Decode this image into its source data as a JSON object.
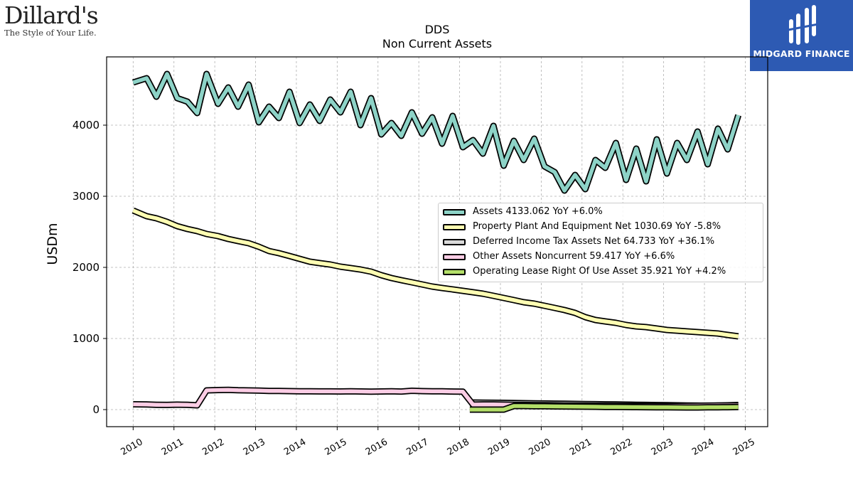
{
  "brand": {
    "name": "Dillard's",
    "tagline": "The Style of Your Life."
  },
  "badge": {
    "name": "MIDGARD FINANCE",
    "bg_color": "#2d5ab3"
  },
  "chart_data": {
    "type": "line",
    "title": "DDS",
    "subtitle": "Non Current  Assets",
    "ylabel": "USDm",
    "xlabel": "",
    "xlim": [
      2009.35,
      2025.55
    ],
    "ylim": [
      -240,
      4960
    ],
    "yticks": [
      0,
      1000,
      2000,
      3000,
      4000
    ],
    "xticks": [
      2010,
      2011,
      2012,
      2013,
      2014,
      2015,
      2016,
      2017,
      2018,
      2019,
      2020,
      2021,
      2022,
      2023,
      2024,
      2025
    ],
    "grid": true,
    "legend_position": "center-right",
    "series": [
      {
        "name": "Assets",
        "legend": "Assets  4133.062 YoY +6.0%",
        "color": "#8dd3c7",
        "x": [
          2010.0,
          2010.33,
          2010.57,
          2010.83,
          2011.08,
          2011.33,
          2011.57,
          2011.8,
          2012.08,
          2012.33,
          2012.57,
          2012.83,
          2013.08,
          2013.33,
          2013.57,
          2013.83,
          2014.08,
          2014.33,
          2014.57,
          2014.83,
          2015.08,
          2015.33,
          2015.57,
          2015.83,
          2016.08,
          2016.33,
          2016.57,
          2016.83,
          2017.08,
          2017.33,
          2017.57,
          2017.83,
          2018.08,
          2018.33,
          2018.57,
          2018.83,
          2019.08,
          2019.33,
          2019.57,
          2019.83,
          2020.08,
          2020.33,
          2020.57,
          2020.83,
          2021.08,
          2021.33,
          2021.57,
          2021.83,
          2022.08,
          2022.33,
          2022.57,
          2022.83,
          2023.08,
          2023.33,
          2023.57,
          2023.83,
          2024.08,
          2024.33,
          2024.57,
          2024.83
        ],
        "y": [
          4600,
          4660,
          4400,
          4720,
          4380,
          4330,
          4170,
          4720,
          4300,
          4530,
          4260,
          4570,
          4040,
          4260,
          4100,
          4470,
          4030,
          4290,
          4060,
          4360,
          4180,
          4470,
          4000,
          4380,
          3870,
          4030,
          3850,
          4180,
          3880,
          4110,
          3740,
          4130,
          3690,
          3790,
          3600,
          3990,
          3430,
          3780,
          3510,
          3810,
          3420,
          3340,
          3080,
          3300,
          3100,
          3510,
          3400,
          3750,
          3230,
          3670,
          3210,
          3800,
          3320,
          3750,
          3510,
          3910,
          3450,
          3950,
          3660,
          4140
        ]
      },
      {
        "name": "Property Plant And Equipment Net",
        "legend": "Property Plant And Equipment Net  1030.69 YoY -5.8%",
        "color": "#ffffb3",
        "x": [
          2010.0,
          2010.33,
          2010.57,
          2010.83,
          2011.08,
          2011.33,
          2011.57,
          2011.8,
          2012.08,
          2012.33,
          2012.57,
          2012.83,
          2013.08,
          2013.33,
          2013.57,
          2013.83,
          2014.08,
          2014.33,
          2014.57,
          2014.83,
          2015.08,
          2015.33,
          2015.57,
          2015.83,
          2016.08,
          2016.33,
          2016.57,
          2016.83,
          2017.08,
          2017.33,
          2017.57,
          2017.83,
          2018.08,
          2018.33,
          2018.57,
          2018.83,
          2019.08,
          2019.33,
          2019.57,
          2019.83,
          2020.08,
          2020.33,
          2020.57,
          2020.83,
          2021.08,
          2021.33,
          2021.57,
          2021.83,
          2022.08,
          2022.33,
          2022.57,
          2022.83,
          2023.08,
          2023.33,
          2023.57,
          2023.83,
          2024.08,
          2024.33,
          2024.57,
          2024.83
        ],
        "y": [
          2800,
          2720,
          2690,
          2640,
          2580,
          2540,
          2510,
          2470,
          2440,
          2400,
          2370,
          2340,
          2290,
          2230,
          2200,
          2160,
          2120,
          2080,
          2060,
          2040,
          2010,
          1990,
          1970,
          1940,
          1890,
          1850,
          1820,
          1790,
          1760,
          1730,
          1710,
          1690,
          1670,
          1650,
          1630,
          1600,
          1570,
          1540,
          1510,
          1490,
          1460,
          1430,
          1400,
          1360,
          1300,
          1260,
          1240,
          1220,
          1190,
          1170,
          1160,
          1140,
          1120,
          1110,
          1100,
          1090,
          1080,
          1070,
          1050,
          1030
        ]
      },
      {
        "name": "Deferred Income Tax Assets Net",
        "legend": "Deferred Income Tax Assets Net  64.733 YoY +36.1%",
        "color": "#d9d9d9",
        "x": [
          2018.25,
          2018.57,
          2018.83,
          2019.08,
          2019.33,
          2019.57,
          2019.83,
          2020.08,
          2020.33,
          2020.57,
          2020.83,
          2021.08,
          2021.33,
          2021.57,
          2021.83,
          2022.08,
          2022.33,
          2022.57,
          2022.83,
          2023.08,
          2023.33,
          2023.57,
          2023.83,
          2024.08,
          2024.33,
          2024.57,
          2024.83
        ],
        "y": [
          100,
          98,
          96,
          95,
          92,
          90,
          88,
          86,
          84,
          82,
          80,
          78,
          76,
          74,
          72,
          70,
          68,
          66,
          64,
          62,
          60,
          58,
          56,
          52,
          56,
          60,
          65
        ]
      },
      {
        "name": "Other Assets Noncurrent",
        "legend": "Other Assets Noncurrent  59.417 YoY +6.6%",
        "color": "#fccde5",
        "x": [
          2010.0,
          2010.33,
          2010.57,
          2010.83,
          2011.08,
          2011.33,
          2011.57,
          2011.8,
          2012.08,
          2012.33,
          2012.57,
          2012.83,
          2013.08,
          2013.33,
          2013.57,
          2013.83,
          2014.08,
          2014.33,
          2014.57,
          2014.83,
          2015.08,
          2015.33,
          2015.57,
          2015.83,
          2016.08,
          2016.33,
          2016.57,
          2016.83,
          2017.08,
          2017.33,
          2017.57,
          2017.83,
          2018.08,
          2018.33,
          2018.57,
          2018.83,
          2019.08,
          2019.33,
          2019.57,
          2019.83,
          2020.08,
          2020.33,
          2020.57,
          2020.83,
          2021.08,
          2021.33,
          2021.57,
          2021.83,
          2022.08,
          2022.33,
          2022.57,
          2022.83,
          2023.08,
          2023.33,
          2023.57,
          2023.83,
          2024.08,
          2024.33,
          2024.57,
          2024.83
        ],
        "y": [
          75,
          72,
          68,
          66,
          70,
          67,
          60,
          270,
          275,
          278,
          272,
          270,
          268,
          262,
          262,
          260,
          258,
          258,
          256,
          256,
          255,
          258,
          255,
          252,
          255,
          258,
          254,
          265,
          260,
          258,
          258,
          254,
          252,
          70,
          73,
          72,
          70,
          68,
          66,
          64,
          62,
          60,
          58,
          56,
          55,
          54,
          54,
          53,
          53,
          52,
          52,
          51,
          51,
          52,
          54,
          55,
          56,
          57,
          58,
          59
        ]
      },
      {
        "name": "Operating Lease Right Of Use Asset",
        "legend": "Operating Lease Right Of Use Asset  35.921 YoY +4.2%",
        "color": "#b3de69",
        "x": [
          2018.25,
          2018.57,
          2018.83,
          2019.08,
          2019.33,
          2019.57,
          2019.83,
          2020.08,
          2020.33,
          2020.57,
          2020.83,
          2021.08,
          2021.33,
          2021.57,
          2021.83,
          2022.08,
          2022.33,
          2022.57,
          2022.83,
          2023.08,
          2023.33,
          2023.57,
          2023.83,
          2024.08,
          2024.33,
          2024.57,
          2024.83
        ],
        "y": [
          0,
          0,
          0,
          0,
          50,
          50,
          48,
          47,
          45,
          44,
          42,
          41,
          40,
          38,
          37,
          36,
          35,
          34,
          33,
          32,
          31,
          30,
          30,
          32,
          33,
          34,
          36
        ]
      }
    ]
  }
}
